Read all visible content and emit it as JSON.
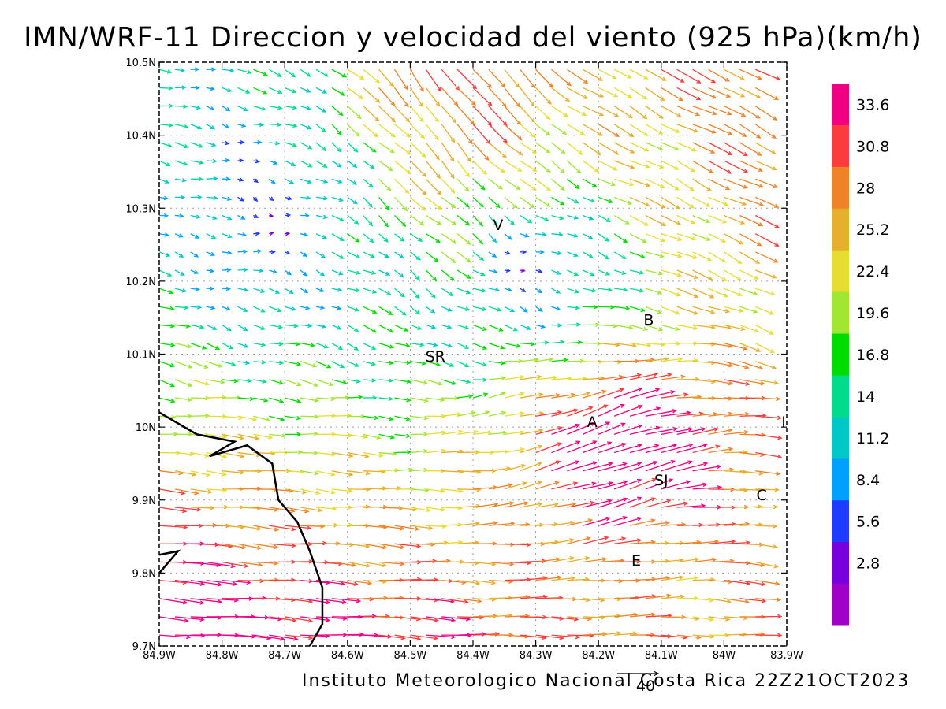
{
  "title": "IMN/WRF-11 Direccion y velocidad del viento (925 hPa)(km/h)",
  "footer": "Instituto Meteorologico Nacional Costa Rica 22Z21OCT2023",
  "chart_data": {
    "type": "wind-vector-map",
    "lon_range": [
      -84.9,
      -83.9
    ],
    "lat_range": [
      9.7,
      10.5
    ],
    "x_ticks": [
      "84.9W",
      "84.8W",
      "84.7W",
      "84.6W",
      "84.5W",
      "84.4W",
      "84.3W",
      "84.2W",
      "84.1W",
      "84W",
      "83.9W"
    ],
    "y_ticks": [
      "9.7N",
      "9.8N",
      "9.9N",
      "10N",
      "10.1N",
      "10.2N",
      "10.3N",
      "10.4N",
      "10.5N"
    ],
    "grid": true,
    "colorbar": {
      "placement": "right",
      "levels": [
        2.8,
        5.6,
        8.4,
        11.2,
        14,
        16.8,
        19.6,
        22.4,
        25.2,
        28,
        30.8,
        33.6
      ],
      "labels": [
        "33.6",
        "30.8",
        "28",
        "25.2",
        "22.4",
        "19.6",
        "16.8",
        "14",
        "11.2",
        "8.4",
        "5.6",
        "2.8"
      ],
      "colors": [
        "#a000c8",
        "#7800dc",
        "#1e3cff",
        "#00a0ff",
        "#00c8c8",
        "#00dc8c",
        "#00dc00",
        "#a0e632",
        "#e6dc32",
        "#e6af2d",
        "#f08228",
        "#fa3c3c",
        "#f00082"
      ]
    },
    "reference_vector": {
      "label": "40",
      "speed_kmh": 40
    },
    "cities": [
      {
        "label": "V",
        "lon": -84.36,
        "lat": 10.27
      },
      {
        "label": "SR",
        "lon": -84.46,
        "lat": 10.09
      },
      {
        "label": "B",
        "lon": -84.12,
        "lat": 10.14
      },
      {
        "label": "A",
        "lon": -84.21,
        "lat": 10.0
      },
      {
        "label": "I",
        "lon": -83.905,
        "lat": 10.0
      },
      {
        "label": "SJ",
        "lon": -84.1,
        "lat": 9.92
      },
      {
        "label": "C",
        "lon": -83.94,
        "lat": 9.9
      },
      {
        "label": "E",
        "lon": -84.14,
        "lat": 9.81
      }
    ],
    "coastline": [
      [
        -84.9,
        10.02
      ],
      [
        -84.84,
        9.99
      ],
      [
        -84.78,
        9.98
      ],
      [
        -84.82,
        9.96
      ],
      [
        -84.76,
        9.975
      ],
      [
        -84.72,
        9.95
      ],
      [
        -84.71,
        9.9
      ],
      [
        -84.68,
        9.87
      ],
      [
        -84.66,
        9.83
      ],
      [
        -84.64,
        9.78
      ],
      [
        -84.64,
        9.73
      ],
      [
        -84.66,
        9.7
      ]
    ],
    "coastline_small": [
      [
        -84.9,
        9.8
      ],
      [
        -84.87,
        9.83
      ],
      [
        -84.9,
        9.825
      ]
    ]
  }
}
